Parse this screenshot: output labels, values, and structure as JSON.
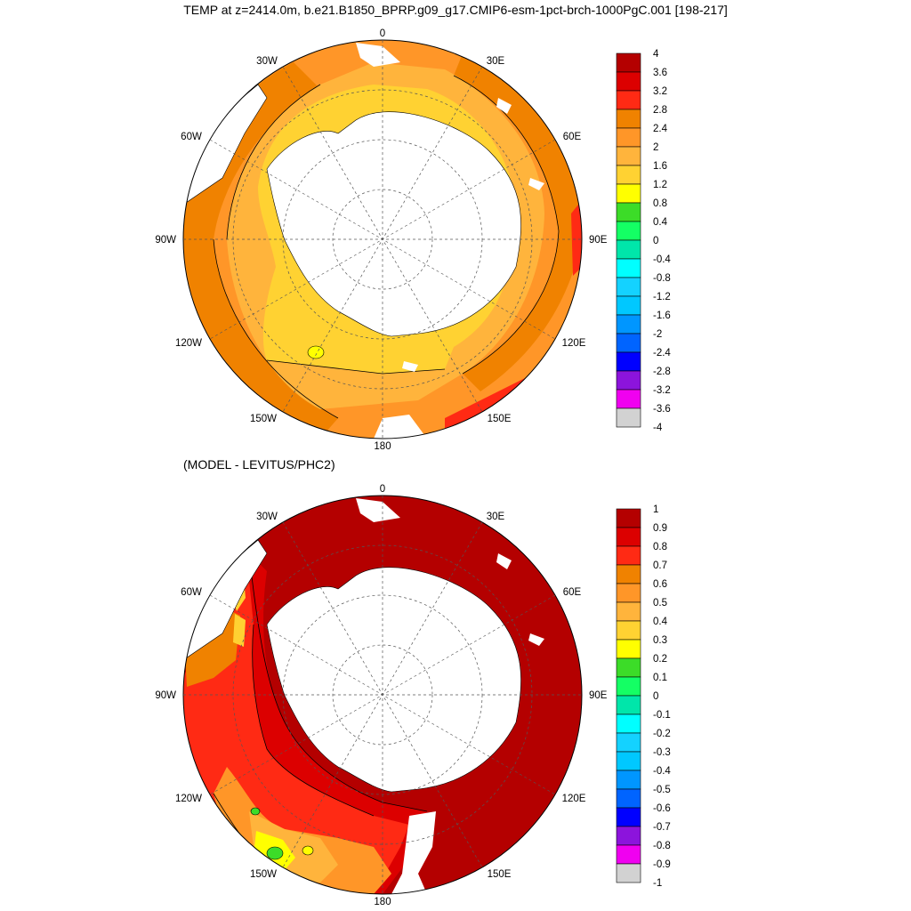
{
  "title": "TEMP at z=2414.0m, b.e21.B1850_BPRP.g09_g17.CMIP6-esm-1pct-brch-1000PgC.001 [198-217]",
  "diff_title": "(MODEL - LEVITUS/PHC2)",
  "lon_labels": {
    "top": "0",
    "tr": "30E",
    "rt": "60E",
    "right": "90E",
    "rb": "120E",
    "br": "150E",
    "bottom": "180",
    "bl": "150W",
    "lb": "120W",
    "left": "90W",
    "lt": "60W",
    "tl": "30W"
  },
  "top_panel": {
    "colorbar_labels": [
      "4",
      "3.6",
      "3.2",
      "2.8",
      "2.4",
      "2",
      "1.6",
      "1.2",
      "0.8",
      "0.4",
      "0",
      "-0.4",
      "-0.8",
      "-1.2",
      "-1.6",
      "-2",
      "-2.4",
      "-2.8",
      "-3.2",
      "-3.6",
      "-4"
    ],
    "colors": [
      "#b40000",
      "#dc0000",
      "#ff2a14",
      "#f08200",
      "#ff9628",
      "#ffb43c",
      "#ffd232",
      "#ffff00",
      "#3cdc28",
      "#14ff64",
      "#00e6aa",
      "#00ffff",
      "#14d2ff",
      "#00c8ff",
      "#0096ff",
      "#0064ff",
      "#0000ff",
      "#8c14dc",
      "#f000f0",
      "#d2d2d2",
      "#6e6e6e"
    ]
  },
  "bottom_panel": {
    "colorbar_labels": [
      "1",
      "0.9",
      "0.8",
      "0.7",
      "0.6",
      "0.5",
      "0.4",
      "0.3",
      "0.2",
      "0.1",
      "0",
      "-0.1",
      "-0.2",
      "-0.3",
      "-0.4",
      "-0.5",
      "-0.6",
      "-0.7",
      "-0.8",
      "-0.9",
      "-1"
    ],
    "colors": [
      "#b40000",
      "#dc0000",
      "#ff2a14",
      "#f08200",
      "#ff9628",
      "#ffb43c",
      "#ffd232",
      "#ffff00",
      "#3cdc28",
      "#14ff64",
      "#00e6aa",
      "#00ffff",
      "#14d2ff",
      "#00c8ff",
      "#0096ff",
      "#0064ff",
      "#0000ff",
      "#8c14dc",
      "#f000f0",
      "#d2d2d2",
      "#6e6e6e"
    ]
  }
}
